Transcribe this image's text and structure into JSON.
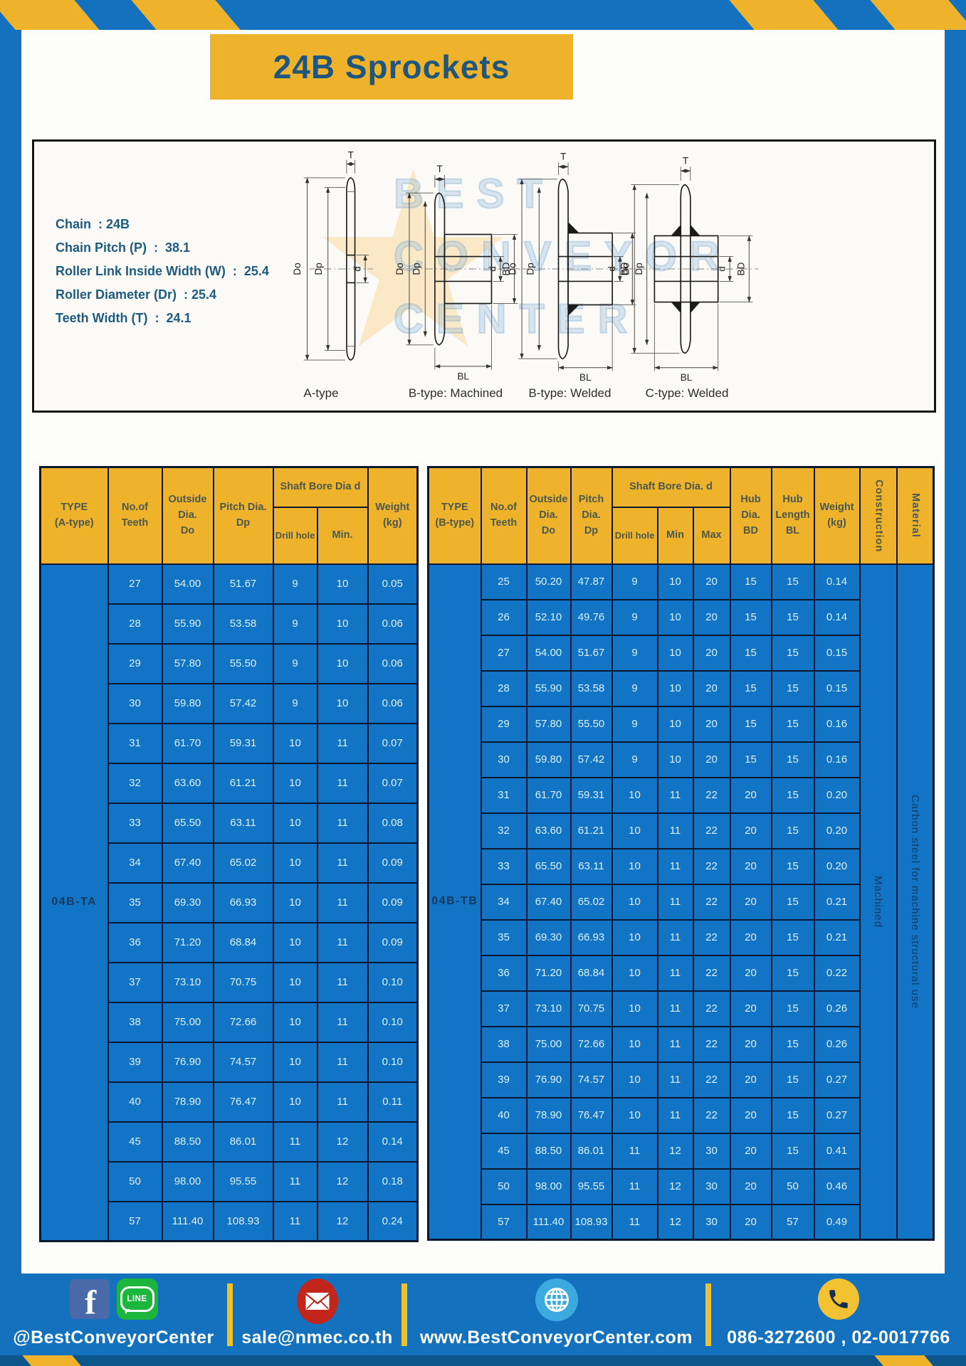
{
  "page": {
    "title": "24B Sprockets"
  },
  "specs": {
    "lines": [
      "Chain  : 24B",
      "Chain Pitch (P)  :  38.1",
      "Roller Link Inside Width (W)  :  25.4",
      "Roller Diameter (Dr)  : 25.4",
      "Teeth Width (T)  :  24.1"
    ]
  },
  "diagram": {
    "dims": {
      "t": "T",
      "do": "Do",
      "dp": "Dp",
      "d": "d",
      "bd": "BD",
      "bl": "BL"
    },
    "types": {
      "a": "A-type",
      "b_machined": "B-type: Machined",
      "b_welded": "B-type: Welded",
      "c_welded": "C-type: Welded"
    },
    "watermark": {
      "line1": "BEST",
      "line2": "CONVEYOR",
      "line3": "CENTER"
    }
  },
  "table_a": {
    "type_label": "04B-TA",
    "headers": {
      "type": "TYPE\n(A-type)",
      "teeth": "No.of\nTeeth",
      "outside": "Outside\nDia.\nDo",
      "pitch": "Pitch Dia.\nDp",
      "shaft": "Shaft Bore Dia d",
      "drill": "Drill hole",
      "min": "Min.",
      "weight": "Weight\n(kg)"
    },
    "rows": [
      [
        "27",
        "54.00",
        "51.67",
        "9",
        "10",
        "0.05"
      ],
      [
        "28",
        "55.90",
        "53.58",
        "9",
        "10",
        "0.06"
      ],
      [
        "29",
        "57.80",
        "55.50",
        "9",
        "10",
        "0.06"
      ],
      [
        "30",
        "59.80",
        "57.42",
        "9",
        "10",
        "0.06"
      ],
      [
        "31",
        "61.70",
        "59.31",
        "10",
        "11",
        "0.07"
      ],
      [
        "32",
        "63.60",
        "61.21",
        "10",
        "11",
        "0.07"
      ],
      [
        "33",
        "65.50",
        "63.11",
        "10",
        "11",
        "0.08"
      ],
      [
        "34",
        "67.40",
        "65.02",
        "10",
        "11",
        "0.09"
      ],
      [
        "35",
        "69.30",
        "66.93",
        "10",
        "11",
        "0.09"
      ],
      [
        "36",
        "71.20",
        "68.84",
        "10",
        "11",
        "0.09"
      ],
      [
        "37",
        "73.10",
        "70.75",
        "10",
        "11",
        "0.10"
      ],
      [
        "38",
        "75.00",
        "72.66",
        "10",
        "11",
        "0.10"
      ],
      [
        "39",
        "76.90",
        "74.57",
        "10",
        "11",
        "0.10"
      ],
      [
        "40",
        "78.90",
        "76.47",
        "10",
        "11",
        "0.11"
      ],
      [
        "45",
        "88.50",
        "86.01",
        "11",
        "12",
        "0.14"
      ],
      [
        "50",
        "98.00",
        "95.55",
        "11",
        "12",
        "0.18"
      ],
      [
        "57",
        "111.40",
        "108.93",
        "11",
        "12",
        "0.24"
      ]
    ]
  },
  "table_b": {
    "type_label": "04B-TB",
    "construction": "Machined",
    "material": "Carbon steel for machine structural use",
    "headers": {
      "type": "TYPE\n(B-type)",
      "teeth": "No.of\nTeeth",
      "outside": "Outside\nDia.\nDo",
      "pitch": "Pitch\nDia.\nDp",
      "shaft": "Shaft Bore Dia.  d",
      "drill": "Drill hole",
      "min": "Min",
      "max": "Max",
      "hub_dia": "Hub\nDia.\nBD",
      "hub_len": "Hub\nLength\nBL",
      "weight": "Weight\n(kg)",
      "construction": "Construction",
      "material": "Material"
    },
    "rows": [
      [
        "25",
        "50.20",
        "47.87",
        "9",
        "10",
        "20",
        "15",
        "15",
        "0.14"
      ],
      [
        "26",
        "52.10",
        "49.76",
        "9",
        "10",
        "20",
        "15",
        "15",
        "0.14"
      ],
      [
        "27",
        "54.00",
        "51.67",
        "9",
        "10",
        "20",
        "15",
        "15",
        "0.15"
      ],
      [
        "28",
        "55.90",
        "53.58",
        "9",
        "10",
        "20",
        "15",
        "15",
        "0.15"
      ],
      [
        "29",
        "57.80",
        "55.50",
        "9",
        "10",
        "20",
        "15",
        "15",
        "0.16"
      ],
      [
        "30",
        "59.80",
        "57.42",
        "9",
        "10",
        "20",
        "15",
        "15",
        "0.16"
      ],
      [
        "31",
        "61.70",
        "59.31",
        "10",
        "11",
        "22",
        "20",
        "15",
        "0.20"
      ],
      [
        "32",
        "63.60",
        "61.21",
        "10",
        "11",
        "22",
        "20",
        "15",
        "0.20"
      ],
      [
        "33",
        "65.50",
        "63.11",
        "10",
        "11",
        "22",
        "20",
        "15",
        "0.20"
      ],
      [
        "34",
        "67.40",
        "65.02",
        "10",
        "11",
        "22",
        "20",
        "15",
        "0.21"
      ],
      [
        "35",
        "69.30",
        "66.93",
        "10",
        "11",
        "22",
        "20",
        "15",
        "0.21"
      ],
      [
        "36",
        "71.20",
        "68.84",
        "10",
        "11",
        "22",
        "20",
        "15",
        "0.22"
      ],
      [
        "37",
        "73.10",
        "70.75",
        "10",
        "11",
        "22",
        "20",
        "15",
        "0.26"
      ],
      [
        "38",
        "75.00",
        "72.66",
        "10",
        "11",
        "22",
        "20",
        "15",
        "0.26"
      ],
      [
        "39",
        "76.90",
        "74.57",
        "10",
        "11",
        "22",
        "20",
        "15",
        "0.27"
      ],
      [
        "40",
        "78.90",
        "76.47",
        "10",
        "11",
        "22",
        "20",
        "15",
        "0.27"
      ],
      [
        "45",
        "88.50",
        "86.01",
        "11",
        "12",
        "30",
        "20",
        "15",
        "0.41"
      ],
      [
        "50",
        "98.00",
        "95.55",
        "11",
        "12",
        "30",
        "20",
        "50",
        "0.46"
      ],
      [
        "57",
        "111.40",
        "108.93",
        "11",
        "12",
        "30",
        "20",
        "57",
        "0.49"
      ]
    ]
  },
  "footer": {
    "social": "@BestConveyorCenter",
    "email": "sale@nmec.co.th",
    "website": "www.BestConveyorCenter.com",
    "phone": "086-3272600 , 02-0017766",
    "fb_letter": "f",
    "line_word": "LINE"
  },
  "colors": {
    "brand_blue": "#1371BE",
    "brand_yellow": "#EFB32B",
    "table_body_blue": "#1174C5",
    "grid_navy": "#0C1830",
    "title_text": "#20567E",
    "header_text": "#4C584C",
    "cell_text": "#DCEFFA",
    "dark_strip": "#0C568C"
  }
}
